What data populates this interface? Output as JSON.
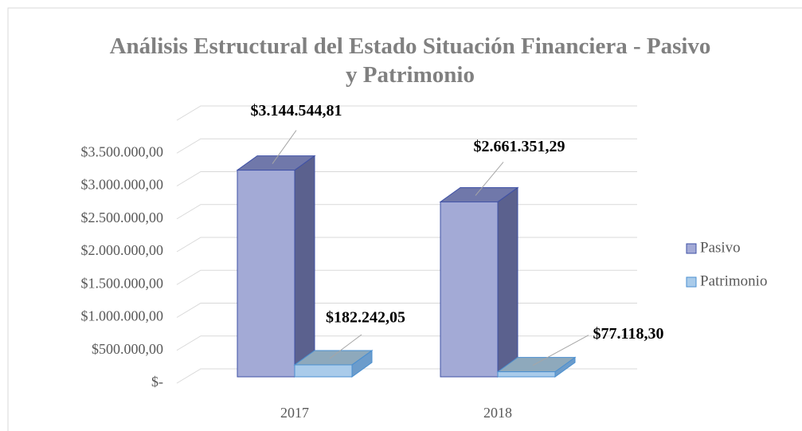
{
  "chart_data": {
    "type": "bar3d",
    "title": "Análisis Estructural del Estado Situación Financiera - Pasivo y Patrimonio",
    "categories": [
      "2017",
      "2018"
    ],
    "series": [
      {
        "name": "Pasivo",
        "color": "#a3aad6",
        "values": [
          3144544.81,
          2661351.29
        ],
        "value_labels": [
          "$3.144.544,81",
          "$2.661.351,29"
        ]
      },
      {
        "name": "Patrimonio",
        "color": "#a9cbea",
        "values": [
          182242.05,
          77118.3
        ],
        "value_labels": [
          "$182.242,05",
          "$77.118,30"
        ]
      }
    ],
    "ylim": [
      0,
      4000000
    ],
    "yticks": [
      {
        "value": 0,
        "label": "$-"
      },
      {
        "value": 500000,
        "label": "$500.000,00"
      },
      {
        "value": 1000000,
        "label": "$1.000.000,00"
      },
      {
        "value": 1500000,
        "label": "$1.500.000,00"
      },
      {
        "value": 2000000,
        "label": "$2.000.000,00"
      },
      {
        "value": 2500000,
        "label": "$2.500.000,00"
      },
      {
        "value": 3000000,
        "label": "$3.000.000,00"
      },
      {
        "value": 3500000,
        "label": "$3.500.000,00"
      }
    ],
    "grid": true,
    "legend": "right"
  }
}
